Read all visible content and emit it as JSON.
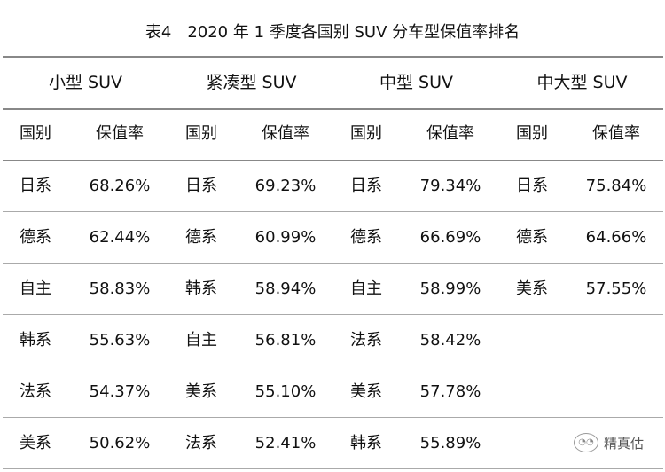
{
  "title": "表4　2020 年 1 季度各国别 SUV 分车型保值率排名",
  "groups": [
    "小型 SUV",
    "紧凑型 SUV",
    "中型 SUV",
    "中大型 SUV"
  ],
  "subheaders": {
    "country": "国别",
    "rate": "保值率"
  },
  "columns": [
    [
      [
        "日系",
        "68.26%"
      ],
      [
        "德系",
        "62.44%"
      ],
      [
        "自主",
        "58.83%"
      ],
      [
        "韩系",
        "55.63%"
      ],
      [
        "法系",
        "54.37%"
      ],
      [
        "美系",
        "50.62%"
      ]
    ],
    [
      [
        "日系",
        "69.23%"
      ],
      [
        "德系",
        "60.99%"
      ],
      [
        "韩系",
        "58.94%"
      ],
      [
        "自主",
        "56.81%"
      ],
      [
        "美系",
        "55.10%"
      ],
      [
        "法系",
        "52.41%"
      ]
    ],
    [
      [
        "日系",
        "79.34%"
      ],
      [
        "德系",
        "66.69%"
      ],
      [
        "自主",
        "58.99%"
      ],
      [
        "法系",
        "58.42%"
      ],
      [
        "美系",
        "57.78%"
      ],
      [
        "韩系",
        "55.89%"
      ]
    ],
    [
      [
        "日系",
        "75.84%"
      ],
      [
        "德系",
        "64.66%"
      ],
      [
        "美系",
        "57.55%"
      ]
    ]
  ],
  "watermark": {
    "label": "精真估",
    "icon": "wechat-icon"
  }
}
